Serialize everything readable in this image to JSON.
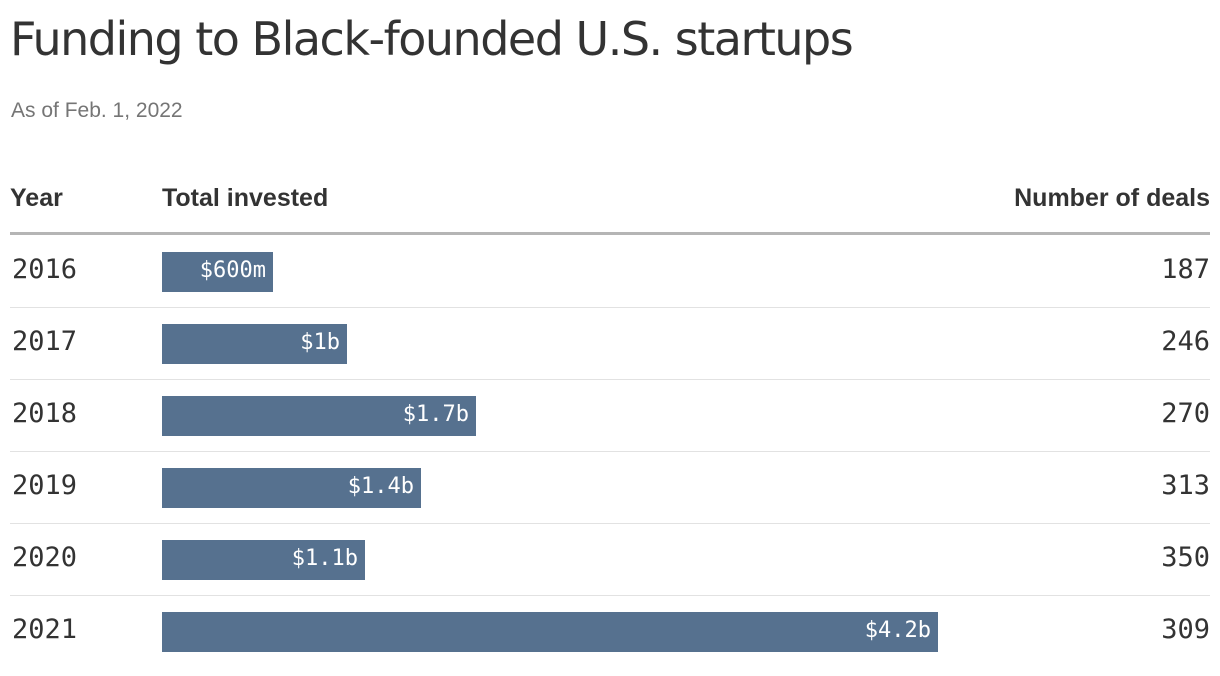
{
  "title": "Funding to Black-founded U.S. startups",
  "subtitle": "As of Feb. 1, 2022",
  "chart_data": {
    "type": "table",
    "columns": [
      "Year",
      "Total invested",
      "Number of deals"
    ],
    "rows": [
      {
        "year": "2016",
        "invested_billions": 0.6,
        "invested_label": "$600m",
        "deals": "187"
      },
      {
        "year": "2017",
        "invested_billions": 1.0,
        "invested_label": "$1b",
        "deals": "246"
      },
      {
        "year": "2018",
        "invested_billions": 1.7,
        "invested_label": "$1.7b",
        "deals": "270"
      },
      {
        "year": "2019",
        "invested_billions": 1.4,
        "invested_label": "$1.4b",
        "deals": "313"
      },
      {
        "year": "2020",
        "invested_billions": 1.1,
        "invested_label": "$1.1b",
        "deals": "350"
      },
      {
        "year": "2021",
        "invested_billions": 4.2,
        "invested_label": "$4.2b",
        "deals": "309"
      }
    ],
    "bar_color": "#56718f",
    "bar_max_billions": 4.2
  }
}
